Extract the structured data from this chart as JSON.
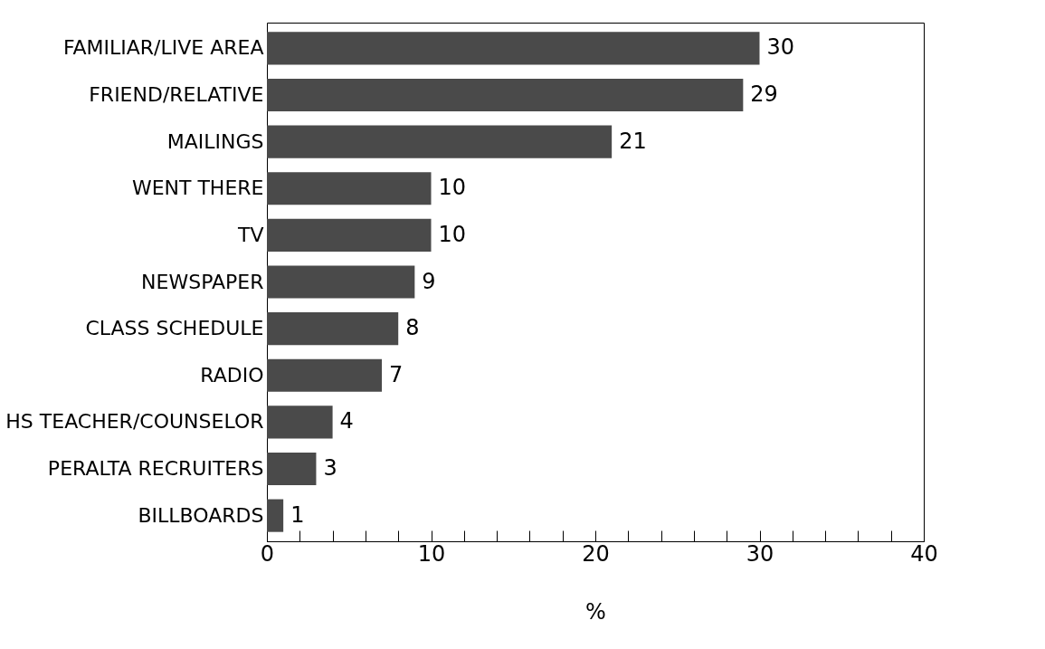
{
  "chart_data": {
    "type": "bar",
    "orientation": "horizontal",
    "xlabel": "%",
    "categories": [
      "FAMILIAR/LIVE AREA",
      "FRIEND/RELATIVE",
      "MAILINGS",
      "WENT THERE",
      "TV",
      "NEWSPAPER",
      "CLASS SCHEDULE",
      "RADIO",
      "HS TEACHER/COUNSELOR",
      "PERALTA RECRUITERS",
      "BILLBOARDS"
    ],
    "values": [
      30,
      29,
      21,
      10,
      10,
      9,
      8,
      7,
      4,
      3,
      1
    ],
    "color": "#4a4a4a",
    "xlim": [
      0,
      40
    ],
    "xticks": [
      0,
      {
        "value": 2,
        "label": null
      },
      {
        "value": 4,
        "label": null
      },
      {
        "value": 6,
        "label": null
      },
      {
        "value": 8,
        "label": null
      },
      10,
      {
        "value": 12,
        "label": null
      },
      {
        "value": 14,
        "label": null
      },
      {
        "value": 16,
        "label": null
      },
      {
        "value": 18,
        "label": null
      },
      20,
      {
        "value": 22,
        "label": null
      },
      {
        "value": 24,
        "label": null
      },
      {
        "value": 26,
        "label": null
      },
      {
        "value": 28,
        "label": null
      },
      30,
      {
        "value": 32,
        "label": null
      },
      {
        "value": 34,
        "label": null
      },
      {
        "value": 36,
        "label": null
      },
      {
        "value": 38,
        "label": null
      },
      40
    ],
    "data_labels": true,
    "grid": false
  }
}
